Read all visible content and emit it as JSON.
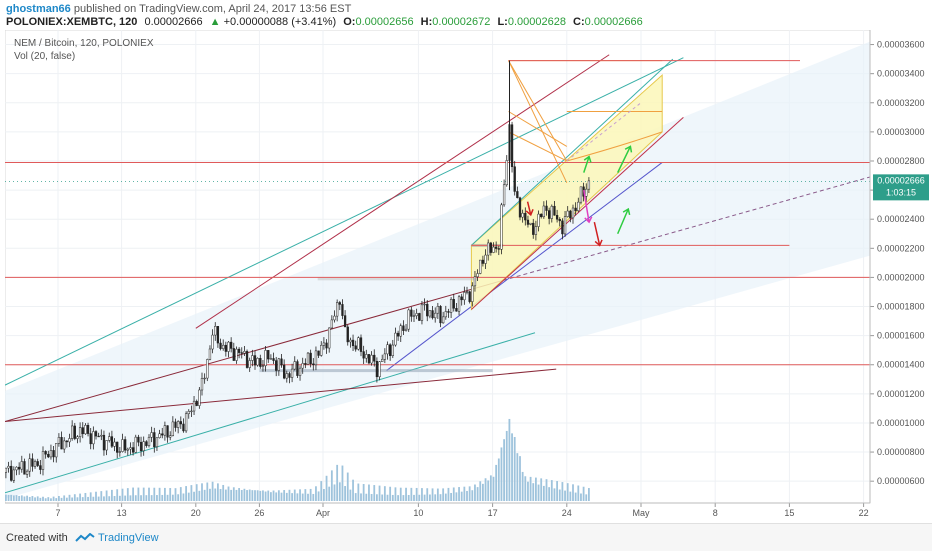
{
  "header": {
    "author": "ghostman66",
    "published": "published on TradingView.com, April 24, 2017 13:56 EST",
    "symbol": "POLONIEX:XEMBTC, 120",
    "price": "0.00002666",
    "change_arrow": "▲",
    "change": "+0.00000088 (+3.41%)",
    "o_label": "O:",
    "o_value": "0.00002656",
    "h_label": "H:",
    "h_value": "0.00002672",
    "l_label": "L:",
    "l_value": "0.00002628",
    "c_label": "C:",
    "c_value": "0.00002666"
  },
  "chart_title": "NEM / Bitcoin, 120, POLONIEX",
  "vol_title": "Vol (20, false)",
  "footer": {
    "created": "Created with",
    "brand": "TradingView"
  },
  "colors": {
    "up": "#2a9d3a",
    "down": "#c0392b",
    "hline": "#e05a5a",
    "channel_fill": "#e8f2fa",
    "triangle_fill": "#fbf7b8",
    "volume": "#9ec3dc"
  },
  "chart_data": {
    "type": "candlestick",
    "title": "NEM / Bitcoin, 120, POLONIEX",
    "y_ticks": [
      "0.00003600",
      "0.00003400",
      "0.00003200",
      "0.00003000",
      "0.00002800",
      "0.00002600",
      "0.00002400",
      "0.00002200",
      "0.00002000",
      "0.00001800",
      "0.00001600",
      "0.00001400",
      "0.00001200",
      "0.00001000",
      "0.00000800",
      "0.00000600"
    ],
    "x_ticks": [
      "7",
      "13",
      "20",
      "26",
      "Apr",
      "10",
      "17",
      "24",
      "May",
      "8",
      "15",
      "22"
    ],
    "ylim": [
      4.5e-06,
      3.7e-05
    ],
    "last_price_label": "0.00002666",
    "countdown_label": "1:03:15",
    "price_path": [
      [
        0,
        6.6e-06
      ],
      [
        3,
        7.2e-06
      ],
      [
        5,
        8.5e-06
      ],
      [
        7,
        9.5e-06
      ],
      [
        9,
        8.9e-06
      ],
      [
        11,
        8.2e-06
      ],
      [
        13,
        8.6e-06
      ],
      [
        15,
        9.3e-06
      ],
      [
        17,
        1.02e-05
      ],
      [
        18.5,
        1.25e-05
      ],
      [
        19.5,
        1.62e-05
      ],
      [
        20.5,
        1.52e-05
      ],
      [
        22,
        1.48e-05
      ],
      [
        23.5,
        1.41e-05
      ],
      [
        25,
        1.45e-05
      ],
      [
        26.5,
        1.33e-05
      ],
      [
        28,
        1.4e-05
      ],
      [
        29.5,
        1.47e-05
      ],
      [
        30.5,
        1.62e-05
      ],
      [
        31.5,
        1.87e-05
      ],
      [
        32,
        1.6e-05
      ],
      [
        33.5,
        1.5e-05
      ],
      [
        35,
        1.38e-05
      ],
      [
        36.5,
        1.55e-05
      ],
      [
        38,
        1.72e-05
      ],
      [
        39.5,
        1.78e-05
      ],
      [
        41,
        1.73e-05
      ],
      [
        42.5,
        1.82e-05
      ],
      [
        44,
        1.92e-05
      ],
      [
        45,
        2.15e-05
      ],
      [
        46.5,
        2.23e-05
      ],
      [
        47.5,
        3.04e-05
      ],
      [
        48,
        2.55e-05
      ],
      [
        49.5,
        2.32e-05
      ],
      [
        51,
        2.48e-05
      ],
      [
        52.5,
        2.36e-05
      ],
      [
        54,
        2.52e-05
      ],
      [
        55,
        2.66e-05
      ]
    ],
    "volume": [
      [
        0,
        2
      ],
      [
        4,
        1
      ],
      [
        8,
        2
      ],
      [
        12,
        3
      ],
      [
        16,
        3
      ],
      [
        19.5,
        5
      ],
      [
        21,
        4
      ],
      [
        25,
        3
      ],
      [
        29,
        3
      ],
      [
        31.5,
        9
      ],
      [
        33,
        4
      ],
      [
        37,
        3
      ],
      [
        41,
        3
      ],
      [
        44,
        4
      ],
      [
        46,
        8
      ],
      [
        47.5,
        25
      ],
      [
        49,
        7
      ],
      [
        52,
        5
      ],
      [
        55,
        3
      ]
    ],
    "horizontal_levels": [
      3.49e-05,
      2.79e-05,
      2.22e-05,
      2e-05,
      1.4e-05
    ],
    "annotations": "trend channels, triangle, fibonacci fan, projection arrows"
  }
}
